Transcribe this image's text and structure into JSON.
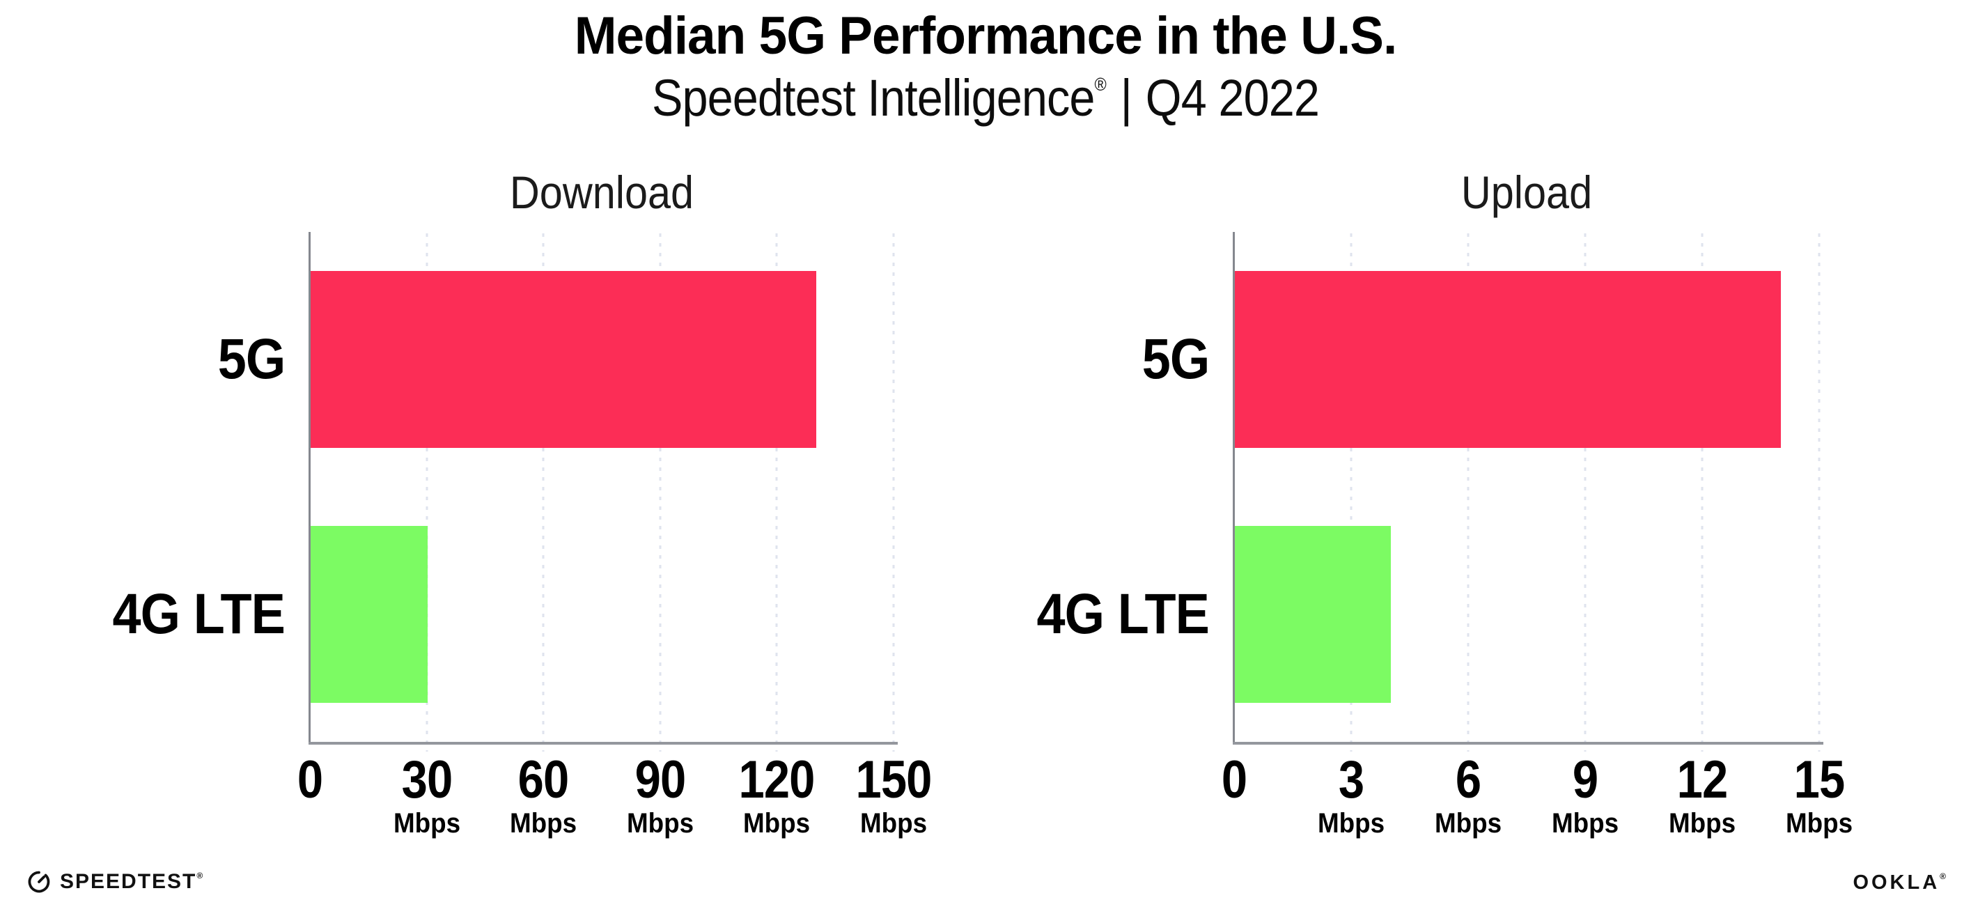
{
  "header": {
    "title": "Median 5G Performance in the U.S.",
    "subtitle": {
      "brand": "Speedtest Intelligence",
      "registered_mark": "®",
      "separator": "|",
      "period": "Q4 2022"
    }
  },
  "chart_data": [
    {
      "type": "bar",
      "orientation": "horizontal",
      "title": "Download",
      "unit_label": "Mbps",
      "categories": [
        "5G",
        "4G LTE"
      ],
      "values": [
        130,
        30
      ],
      "xlim": [
        0,
        150
      ],
      "xticks": [
        0,
        30,
        60,
        90,
        120,
        150
      ],
      "bar_colors": [
        "#fc2d56",
        "#7cfb63"
      ],
      "grid": "vertical dotted light-gray lines at each tick",
      "legend": "none"
    },
    {
      "type": "bar",
      "orientation": "horizontal",
      "title": "Upload",
      "unit_label": "Mbps",
      "categories": [
        "5G",
        "4G LTE"
      ],
      "values": [
        14,
        4
      ],
      "xlim": [
        0,
        15
      ],
      "xticks": [
        0,
        3,
        6,
        9,
        12,
        15
      ],
      "bar_colors": [
        "#fc2d56",
        "#7cfb63"
      ],
      "grid": "vertical dotted light-gray lines at each tick",
      "legend": "none"
    }
  ],
  "footer": {
    "speedtest": {
      "label": "SPEEDTEST",
      "mark": "®"
    },
    "ookla": {
      "label": "OOKLA",
      "mark": "®"
    }
  },
  "colors": {
    "background": "#ffffff",
    "bar_5g": "#fc2d56",
    "bar_4g_lte": "#7cfb63",
    "axis_line": "#94979d",
    "gridline_dots": "#dfe3ee",
    "title_text": "#000000",
    "subtitle_text": "#0d0d0d",
    "chart_title_text": "#1b1b1b"
  }
}
